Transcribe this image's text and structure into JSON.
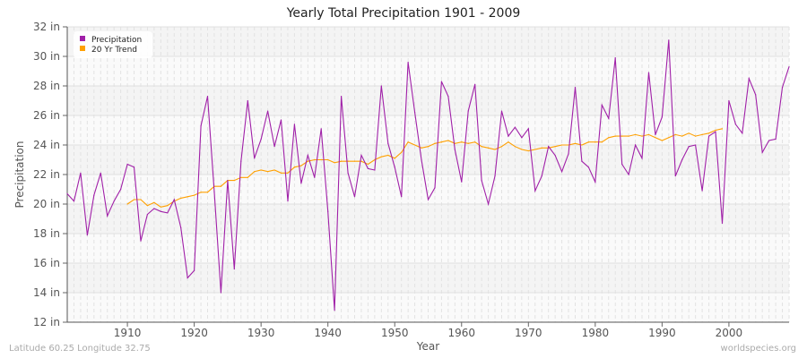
{
  "chart_data": {
    "type": "line",
    "title": "Yearly Total Precipitation 1901 - 2009",
    "xlabel": "Year",
    "ylabel": "Precipitation",
    "xlim": [
      1901,
      2009
    ],
    "ylim": [
      12,
      32
    ],
    "y_unit": "in",
    "yticks": [
      12,
      14,
      16,
      18,
      20,
      22,
      24,
      26,
      28,
      30,
      32
    ],
    "ytick_labels": [
      "12 in",
      "14 in",
      "16 in",
      "18 in",
      "20 in",
      "22 in",
      "24 in",
      "26 in",
      "28 in",
      "30 in",
      "32 in"
    ],
    "xticks": [
      1910,
      1920,
      1930,
      1940,
      1950,
      1960,
      1970,
      1980,
      1990,
      2000
    ],
    "xtick_labels": [
      "1910",
      "1920",
      "1930",
      "1940",
      "1950",
      "1960",
      "1970",
      "1980",
      "1990",
      "2000"
    ],
    "grid": true,
    "legend_position": "top-left",
    "series": [
      {
        "name": "Precipitation",
        "color": "#a020a8",
        "start_year": 1901,
        "values": [
          20.7,
          20.2,
          22.1,
          17.9,
          20.6,
          22.1,
          19.2,
          20.2,
          21.0,
          22.7,
          22.5,
          17.5,
          19.3,
          19.7,
          19.5,
          19.4,
          20.3,
          18.4,
          15.0,
          15.5,
          25.3,
          27.3,
          20.8,
          14.0,
          21.6,
          15.6,
          22.9,
          27.0,
          23.1,
          24.4,
          26.3,
          23.9,
          25.7,
          20.2,
          25.4,
          21.4,
          23.3,
          21.8,
          25.1,
          19.5,
          12.8,
          27.3,
          22.1,
          20.5,
          23.3,
          22.4,
          22.3,
          28.0,
          24.1,
          22.5,
          20.5,
          29.6,
          26.2,
          23.0,
          20.3,
          21.1,
          28.3,
          27.3,
          23.7,
          21.5,
          26.3,
          28.1,
          21.6,
          20.0,
          21.9,
          26.3,
          24.6,
          25.2,
          24.5,
          25.1,
          20.9,
          21.9,
          23.9,
          23.3,
          22.2,
          23.4,
          27.9,
          22.9,
          22.5,
          21.5,
          26.7,
          25.8,
          29.9,
          22.7,
          22.0,
          24.0,
          23.1,
          28.9,
          24.7,
          25.9,
          31.1,
          21.9,
          23.0,
          23.9,
          24.0,
          20.9,
          24.6,
          24.9,
          18.7,
          27.0,
          25.4,
          24.8,
          28.5,
          27.4,
          23.5,
          24.3,
          24.4,
          27.9,
          29.3
        ]
      },
      {
        "name": "20 Yr Trend",
        "color": "#ffa000",
        "start_year": 1910,
        "values": [
          20.0,
          20.3,
          20.3,
          19.9,
          20.1,
          19.8,
          19.9,
          20.2,
          20.4,
          20.5,
          20.6,
          20.8,
          20.8,
          21.2,
          21.2,
          21.6,
          21.6,
          21.8,
          21.8,
          22.2,
          22.3,
          22.2,
          22.3,
          22.1,
          22.1,
          22.5,
          22.6,
          22.9,
          23.0,
          23.0,
          23.0,
          22.8,
          22.9,
          22.9,
          22.9,
          22.9,
          22.7,
          23.0,
          23.2,
          23.3,
          23.1,
          23.5,
          24.2,
          24.0,
          23.8,
          23.9,
          24.1,
          24.2,
          24.3,
          24.1,
          24.2,
          24.1,
          24.2,
          23.9,
          23.8,
          23.7,
          23.9,
          24.2,
          23.9,
          23.7,
          23.6,
          23.7,
          23.8,
          23.8,
          23.9,
          24.0,
          24.0,
          24.1,
          24.0,
          24.2,
          24.2,
          24.2,
          24.5,
          24.6,
          24.6,
          24.6,
          24.7,
          24.6,
          24.7,
          24.5,
          24.3,
          24.5,
          24.7,
          24.6,
          24.8,
          24.6,
          24.7,
          24.8,
          25.0,
          25.1
        ]
      }
    ]
  },
  "footer": {
    "location": "Latitude 60.25 Longitude 32.75",
    "site": "worldspecies.org"
  }
}
